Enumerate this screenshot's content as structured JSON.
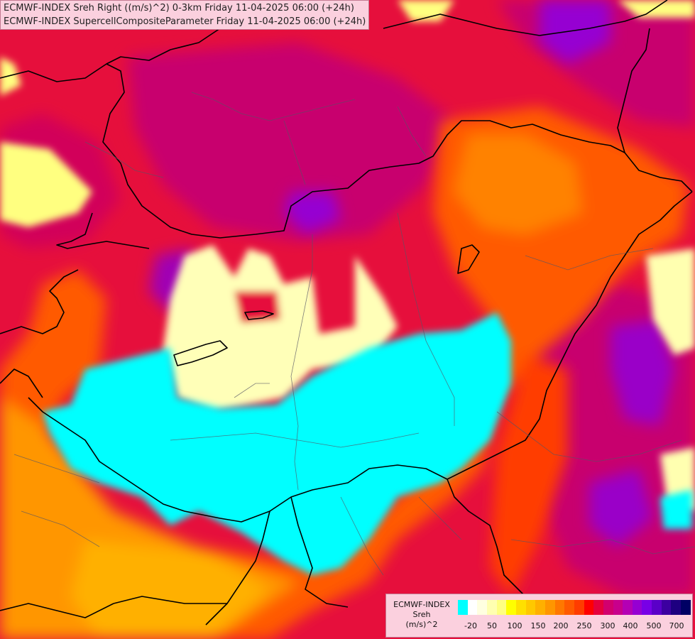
{
  "titles": {
    "line1": "ECMWF-INDEX Sreh Right ((m/s)^2) 0-3km Friday 11-04-2025 06:00 (+24h)",
    "line2": "ECMWF-INDEX SupercellCompositeParameter Friday 11-04-2025 06:00 (+24h)"
  },
  "legend": {
    "line1": "ECMWF-INDEX",
    "line2": "Sreh",
    "line3": "(m/s)^2",
    "colors": [
      "#00ffff",
      "#ffffff",
      "#ffffe0",
      "#ffffb0",
      "#ffff80",
      "#ffff00",
      "#ffe000",
      "#ffc800",
      "#ffb000",
      "#ff9600",
      "#ff7800",
      "#ff5a00",
      "#ff3c00",
      "#ff0000",
      "#e6003c",
      "#d2006e",
      "#c8008c",
      "#b400b4",
      "#9600d2",
      "#7800e6",
      "#5a00c8",
      "#3c00a0",
      "#1e0080",
      "#000064"
    ],
    "ticks": [
      "-20",
      "50",
      "100",
      "150",
      "200",
      "250",
      "300",
      "400",
      "500",
      "700"
    ]
  }
}
